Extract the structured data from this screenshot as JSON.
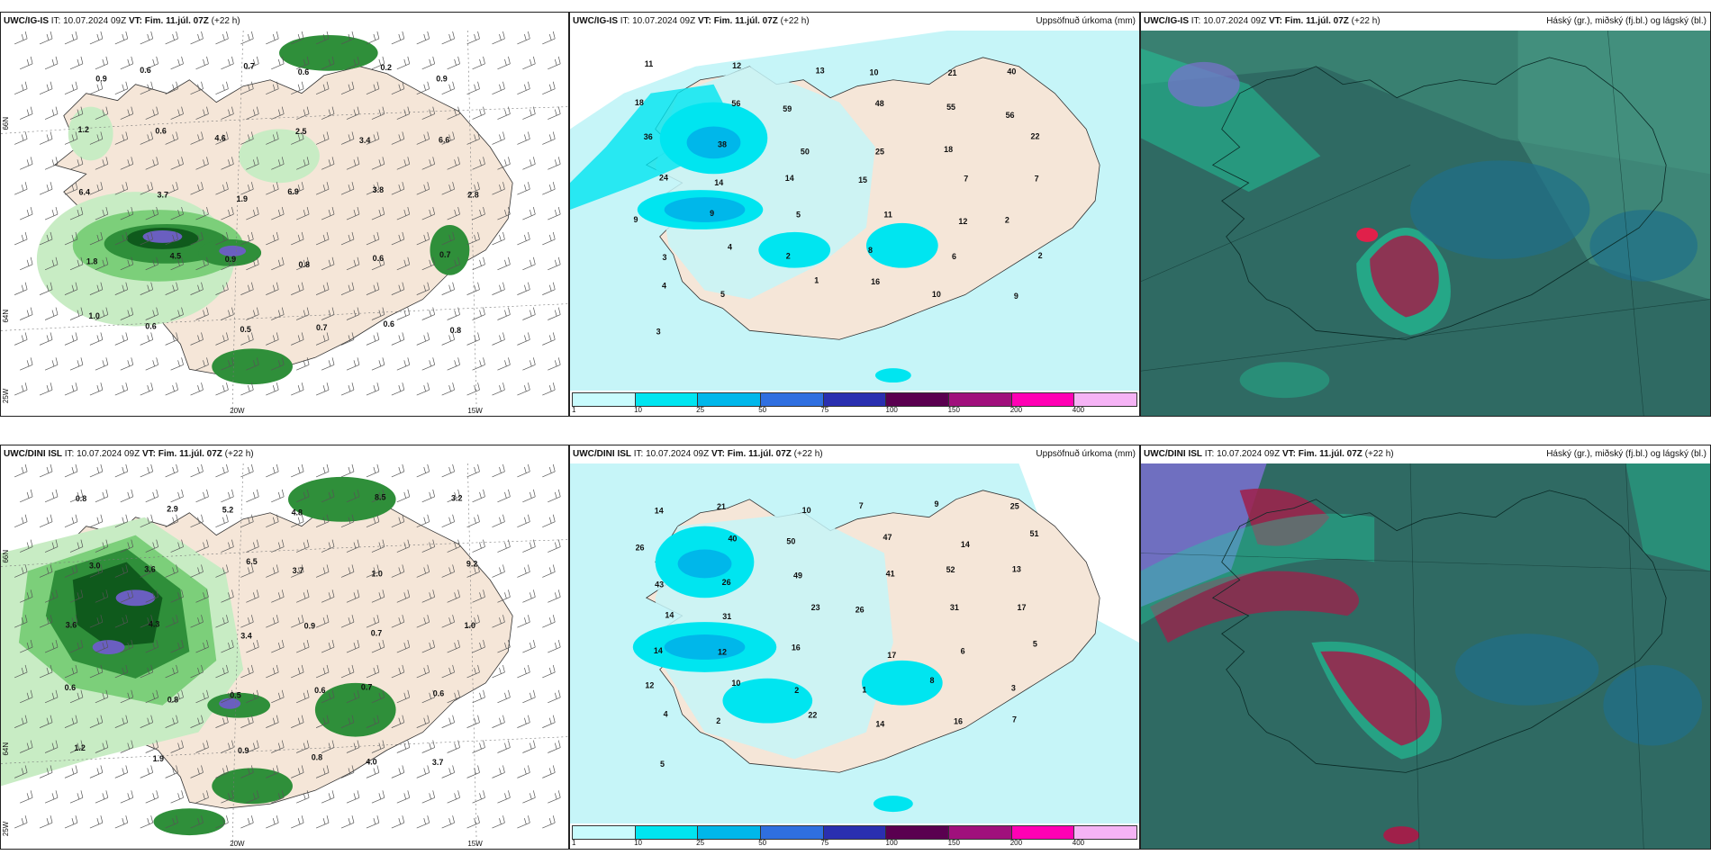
{
  "colors": {
    "land": "#f5e6d8",
    "sea_precip": "#c6f5f8",
    "green_light": "#c8ecc4",
    "green_mid": "#7ccf7a",
    "green_dark": "#2f8f3a",
    "green_deep": "#0f5a1c",
    "purple": "#6a5fc0",
    "cloud_base": "#2f6a63",
    "cloud_teal": "#1fd0a0",
    "cloud_blue": "#1f6f8a",
    "cloud_red": "#a0204a",
    "cloud_violet": "#7a70d0"
  },
  "rows": [
    {
      "model": "UWC/IG-IS",
      "it_label": "IT:",
      "it_value": "10.07.2024 09Z",
      "vt_label": "VT: Fim. 11.júl. 07Z",
      "lead": "(+22 h)",
      "axis": {
        "lat1": "66N",
        "lat2": "64N",
        "lon1": "20W",
        "lon2": "15W",
        "lon3": "25W"
      },
      "precip_title": "Uppsöfnuð úrkoma (mm)",
      "cloud_title": "Háský (gr.), miðský (fj.bl.) og lágský (bl.)",
      "left_labels": [
        "0.9",
        "0.6",
        "0.7",
        "0.6",
        "0.2",
        "0.9",
        "1.2",
        "0.6",
        "4.6",
        "2.5",
        "3.4",
        "6.6",
        "6.4",
        "3.7",
        "1.9",
        "6.9",
        "3.8",
        "2.8",
        "1.8",
        "4.5",
        "0.9",
        "0.8",
        "0.6",
        "0.7",
        "1.0",
        "0.6",
        "0.5",
        "0.7",
        "0.6",
        "0.8"
      ],
      "mid_labels": [
        "11",
        "12",
        "13",
        "10",
        "21",
        "40",
        "18",
        "56",
        "59",
        "48",
        "55",
        "56",
        "36",
        "38",
        "50",
        "25",
        "18",
        "22",
        "24",
        "14",
        "14",
        "15",
        "7",
        "7",
        "9",
        "9",
        "5",
        "11",
        "12",
        "2",
        "3",
        "4",
        "2",
        "8",
        "6",
        "2",
        "4",
        "5",
        "1",
        "16",
        "10",
        "9",
        "3"
      ]
    },
    {
      "model": "UWC/DINI ISL",
      "it_label": "IT:",
      "it_value": "10.07.2024 09Z",
      "vt_label": "VT: Fim. 11.júl. 07Z",
      "lead": "(+22 h)",
      "axis": {
        "lat1": "66N",
        "lat2": "64N",
        "lon1": "20W",
        "lon2": "15W",
        "lon3": "25W"
      },
      "precip_title": "Uppsöfnuð úrkoma (mm)",
      "cloud_title": "Háský (gr.), miðský (fj.bl.) og lágský (bl.)",
      "left_labels": [
        "0.8",
        "2.9",
        "5.2",
        "4.8",
        "8.5",
        "3.2",
        "3.0",
        "3.6",
        "6.5",
        "3.7",
        "1.0",
        "9.2",
        "3.6",
        "4.3",
        "3.4",
        "0.9",
        "0.7",
        "1.0",
        "0.6",
        "0.8",
        "0.5",
        "0.6",
        "0.7",
        "0.6",
        "1.2",
        "1.9",
        "0.9",
        "0.8",
        "4.0",
        "3.7"
      ],
      "mid_labels": [
        "14",
        "21",
        "10",
        "7",
        "9",
        "25",
        "26",
        "40",
        "50",
        "47",
        "14",
        "51",
        "43",
        "26",
        "49",
        "41",
        "52",
        "13",
        "14",
        "31",
        "23",
        "26",
        "31",
        "17",
        "14",
        "12",
        "16",
        "17",
        "6",
        "5",
        "12",
        "10",
        "2",
        "1",
        "8",
        "3",
        "4",
        "2",
        "22",
        "14",
        "16",
        "7",
        "5"
      ]
    }
  ],
  "legend": {
    "ticks": [
      "1",
      "10",
      "25",
      "50",
      "75",
      "100",
      "150",
      "200",
      "400"
    ],
    "swatches": [
      "#c8fbfd",
      "#00e5f0",
      "#00b7ea",
      "#2f6fe0",
      "#2a2fb0",
      "#5a0050",
      "#a0107c",
      "#ff00b4",
      "#f5b3f5"
    ]
  }
}
